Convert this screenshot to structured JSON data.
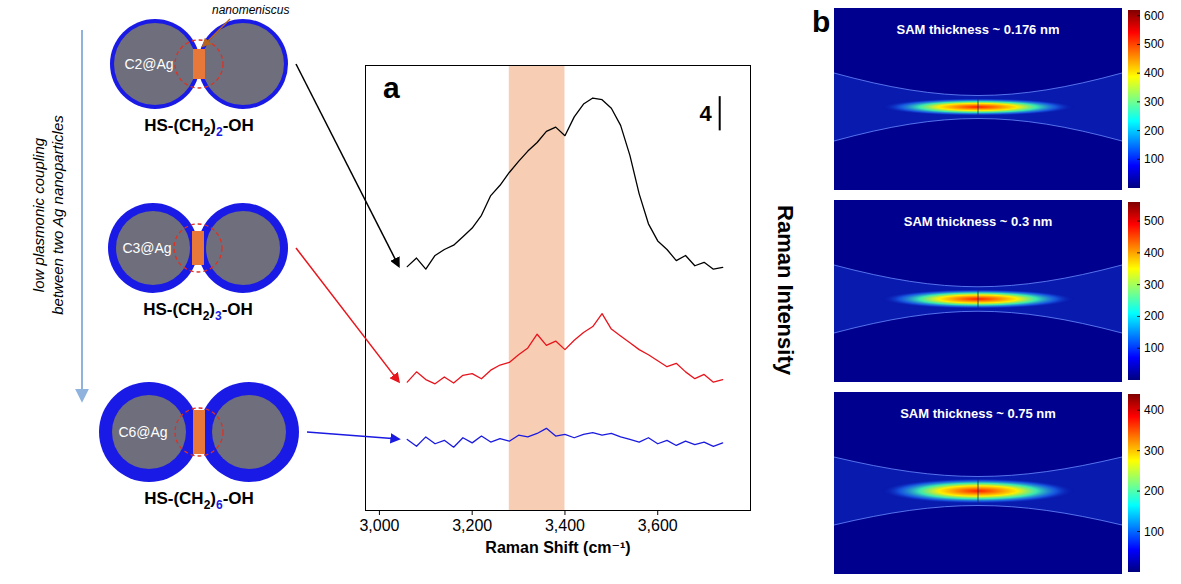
{
  "schematic": {
    "side_label": [
      "low plasmonic coupling",
      "between two Ag nanoparticles"
    ],
    "annotation": "nanomeniscus",
    "pairs": [
      {
        "label": "C2@Ag",
        "formula": "HS-(CH2)2-OH"
      },
      {
        "label": "C3@Ag",
        "formula": "HS-(CH2)3-OH"
      },
      {
        "label": "C6@Ag",
        "formula": "HS-(CH2)6-OH"
      }
    ]
  },
  "chart_data": {
    "type": "line",
    "panel": "a",
    "x_label": "Raman Shift (cm⁻¹)",
    "y_label": "Raman Intensity",
    "x": [
      3060,
      3080,
      3100,
      3120,
      3140,
      3160,
      3180,
      3200,
      3220,
      3240,
      3260,
      3280,
      3300,
      3320,
      3340,
      3360,
      3380,
      3400,
      3420,
      3440,
      3460,
      3480,
      3500,
      3520,
      3540,
      3560,
      3580,
      3600,
      3620,
      3640,
      3660,
      3680,
      3700,
      3720,
      3740
    ],
    "series": [
      {
        "color": "#000000",
        "values": [
          28.5,
          29.5,
          28.2,
          29.8,
          30.5,
          31.0,
          32.0,
          33.0,
          34.5,
          36.8,
          38.0,
          39.5,
          40.8,
          42.0,
          43.0,
          44.3,
          44.8,
          43.8,
          46.0,
          47.5,
          48.2,
          48.0,
          47.0,
          45.0,
          41.5,
          37.0,
          33.5,
          31.5,
          30.5,
          29.2,
          29.8,
          28.6,
          29.0,
          28.2,
          28.4
        ]
      },
      {
        "color": "#e8141c",
        "values": [
          15.0,
          16.2,
          15.3,
          14.8,
          15.6,
          14.9,
          15.8,
          16.0,
          15.4,
          16.4,
          17.0,
          17.3,
          18.2,
          19.0,
          20.6,
          19.3,
          19.8,
          18.8,
          19.9,
          20.8,
          21.5,
          23.0,
          21.2,
          20.4,
          19.6,
          18.8,
          18.2,
          17.5,
          16.8,
          17.2,
          16.2,
          15.4,
          15.9,
          15.0,
          15.3
        ]
      },
      {
        "color": "#1a1ae0",
        "values": [
          8.3,
          7.5,
          8.6,
          7.8,
          8.2,
          7.4,
          8.5,
          7.9,
          8.7,
          8.0,
          8.4,
          8.1,
          8.8,
          8.6,
          9.0,
          9.6,
          8.7,
          8.9,
          8.5,
          8.9,
          9.1,
          8.8,
          9.0,
          8.6,
          8.3,
          8.0,
          8.5,
          7.8,
          8.2,
          7.6,
          8.1,
          7.7,
          8.0,
          7.5,
          7.9
        ]
      }
    ],
    "xlim": [
      2970,
      3800
    ],
    "xticks": [
      3000,
      3200,
      3400,
      3600
    ],
    "ylim": [
      0,
      52
    ],
    "yticks": [],
    "tick_labels": "x",
    "grid": false,
    "scale_bar": 4,
    "highlight": {
      "x": [
        3280,
        3400
      ],
      "color": "#f6c6a6"
    }
  },
  "simulations": {
    "panel": "b",
    "maps": [
      {
        "title": "SAM thickness ~ 0.176 nm",
        "colorbar_range": [
          0,
          620
        ],
        "colorbar_ticks": [
          100,
          200,
          300,
          400,
          500,
          600
        ]
      },
      {
        "title": "SAM thickness ~ 0.3 nm",
        "colorbar_range": [
          0,
          560
        ],
        "colorbar_ticks": [
          100,
          200,
          300,
          400,
          500
        ]
      },
      {
        "title": "SAM thickness ~ 0.75 nm",
        "colorbar_range": [
          0,
          440
        ],
        "colorbar_ticks": [
          100,
          200,
          300,
          400
        ]
      }
    ]
  }
}
